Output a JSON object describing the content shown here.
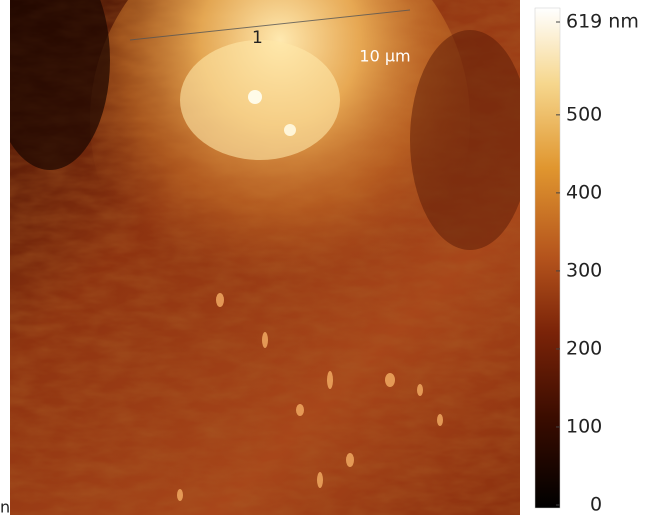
{
  "image": {
    "profile_label": "1",
    "scale_bar": "10 µm",
    "corner_label": "n"
  },
  "colorbar": {
    "range": [
      0,
      619
    ],
    "ticks": [
      {
        "value": 619,
        "label": "619 nm"
      },
      500,
      400,
      300,
      200,
      100,
      0
    ]
  }
}
